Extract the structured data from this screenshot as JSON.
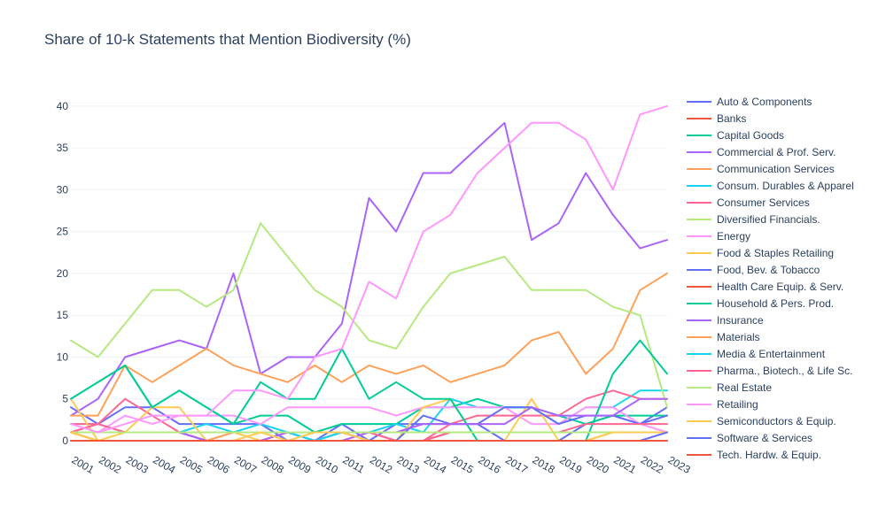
{
  "chart_data": {
    "type": "line",
    "title": "Share of 10-k Statements that Mention Biodiversity (%)",
    "xlabel": "",
    "ylabel": "",
    "x": [
      "2001",
      "2002",
      "2003",
      "2004",
      "2005",
      "2006",
      "2007",
      "2008",
      "2009",
      "2010",
      "2011",
      "2012",
      "2013",
      "2014",
      "2015",
      "2016",
      "2017",
      "2018",
      "2019",
      "2020",
      "2021",
      "2022",
      "2023"
    ],
    "ylim": [
      0,
      40
    ],
    "yticks": [
      0,
      5,
      10,
      15,
      20,
      25,
      30,
      35,
      40
    ],
    "grid": true,
    "legend_position": "right",
    "series": [
      {
        "name": "Auto & Components",
        "color": "#636efa",
        "values": [
          4,
          2,
          4,
          4,
          2,
          2,
          2,
          2,
          0,
          0,
          2,
          0,
          2,
          2,
          2,
          2,
          0,
          0,
          0,
          2,
          3,
          2,
          4
        ]
      },
      {
        "name": "Banks",
        "color": "#ef553b",
        "values": [
          1,
          0,
          0,
          0,
          0,
          0,
          0,
          0,
          0,
          0,
          0,
          0,
          0,
          0,
          0,
          0,
          0,
          0,
          0,
          0,
          0,
          0,
          0
        ]
      },
      {
        "name": "Capital Goods",
        "color": "#00cc96",
        "values": [
          5,
          7,
          9,
          4,
          6,
          4,
          2,
          3,
          3,
          1,
          2,
          2,
          2,
          4,
          4,
          5,
          4,
          4,
          3,
          2,
          3,
          3,
          3
        ]
      },
      {
        "name": "Commercial & Prof. Serv.",
        "color": "#ab63fa",
        "values": [
          3,
          5,
          10,
          11,
          12,
          11,
          20,
          8,
          10,
          10,
          14,
          29,
          25,
          32,
          32,
          35,
          38,
          24,
          26,
          32,
          27,
          23,
          24
        ]
      },
      {
        "name": "Communication Services",
        "color": "#ffa15a",
        "values": [
          3,
          3,
          9,
          7,
          9,
          11,
          9,
          8,
          7,
          9,
          7,
          9,
          8,
          9,
          7,
          8,
          9,
          12,
          13,
          8,
          11,
          18,
          20
        ]
      },
      {
        "name": "Consum. Durables & Apparel",
        "color": "#19d3f3",
        "values": [
          2,
          2,
          1,
          1,
          1,
          2,
          1,
          2,
          1,
          0,
          1,
          1,
          2,
          1,
          5,
          4,
          4,
          4,
          2,
          4,
          4,
          6,
          6
        ]
      },
      {
        "name": "Consumer Services",
        "color": "#ff6692",
        "values": [
          2,
          2,
          5,
          3,
          1,
          0,
          0,
          0,
          1,
          1,
          1,
          1,
          0,
          0,
          2,
          3,
          3,
          3,
          3,
          5,
          6,
          5,
          5
        ]
      },
      {
        "name": "Diversified Financials.",
        "color": "#b6e880",
        "values": [
          12,
          10,
          14,
          18,
          18,
          16,
          18,
          26,
          22,
          18,
          16,
          12,
          11,
          16,
          20,
          21,
          22,
          18,
          18,
          18,
          16,
          15,
          4
        ]
      },
      {
        "name": "Energy",
        "color": "#ff97ff",
        "values": [
          1,
          1,
          3,
          2,
          3,
          3,
          3,
          2,
          4,
          4,
          4,
          4,
          3,
          4,
          4,
          4,
          4,
          2,
          2,
          4,
          4,
          2,
          1
        ]
      },
      {
        "name": "Food & Staples Retailing",
        "color": "#fecb52",
        "values": [
          5,
          0,
          1,
          4,
          4,
          0,
          1,
          0,
          0,
          0,
          1,
          0,
          0,
          4,
          5,
          0,
          0,
          5,
          0,
          0,
          1,
          1,
          1
        ]
      },
      {
        "name": "Food, Bev. & Tobacco",
        "color": "#636efa",
        "values": [
          1,
          1,
          1,
          1,
          1,
          0,
          0,
          0,
          0,
          0,
          1,
          0,
          0,
          3,
          2,
          2,
          4,
          4,
          2,
          3,
          3,
          2,
          3
        ]
      },
      {
        "name": "Health Care Equip. & Serv.",
        "color": "#ef553b",
        "values": [
          1,
          0,
          0,
          0,
          0,
          0,
          0,
          0,
          0,
          0,
          0,
          0,
          0,
          0,
          1,
          1,
          1,
          1,
          1,
          1,
          1,
          1,
          1
        ]
      },
      {
        "name": "Household & Pers. Prod.",
        "color": "#00cc96",
        "values": [
          5,
          7,
          9,
          4,
          6,
          4,
          2,
          7,
          5,
          5,
          11,
          5,
          7,
          5,
          5,
          0,
          0,
          0,
          0,
          0,
          8,
          12,
          8
        ]
      },
      {
        "name": "Insurance",
        "color": "#ab63fa",
        "values": [
          1,
          2,
          1,
          1,
          1,
          0,
          0,
          0,
          1,
          0,
          0,
          1,
          1,
          2,
          2,
          2,
          2,
          4,
          3,
          3,
          3,
          5,
          5
        ]
      },
      {
        "name": "Materials",
        "color": "#ffa15a",
        "values": [
          1,
          0,
          0,
          0,
          0,
          0,
          1,
          1,
          1,
          1,
          1,
          1,
          1,
          1,
          1,
          1,
          1,
          1,
          1,
          1,
          1,
          1,
          1
        ]
      },
      {
        "name": "Media & Entertainment",
        "color": "#19d3f3",
        "values": [
          1,
          1,
          1,
          1,
          1,
          1,
          1,
          1,
          1,
          0,
          1,
          1,
          1,
          1,
          1,
          1,
          1,
          1,
          1,
          1,
          1,
          1,
          1
        ]
      },
      {
        "name": "Pharma., Biotech., & Life Sc.",
        "color": "#ff6692",
        "values": [
          1,
          2,
          1,
          1,
          1,
          1,
          1,
          1,
          1,
          1,
          1,
          1,
          0,
          0,
          1,
          1,
          1,
          1,
          1,
          2,
          2,
          2,
          2
        ]
      },
      {
        "name": "Real Estate",
        "color": "#b6e880",
        "values": [
          1,
          1,
          1,
          1,
          1,
          1,
          1,
          1,
          1,
          1,
          1,
          1,
          1,
          1,
          1,
          1,
          1,
          1,
          1,
          1,
          1,
          1,
          1
        ]
      },
      {
        "name": "Retailing",
        "color": "#ff97ff",
        "values": [
          2,
          1,
          2,
          3,
          3,
          3,
          6,
          6,
          5,
          10,
          11,
          19,
          17,
          25,
          27,
          32,
          35,
          38,
          38,
          36,
          30,
          39,
          40
        ]
      },
      {
        "name": "Semiconductors & Equip.",
        "color": "#fecb52",
        "values": [
          1,
          0,
          0,
          0,
          0,
          0,
          0,
          1,
          0,
          1,
          1,
          0,
          0,
          0,
          0,
          0,
          0,
          0,
          0,
          0,
          1,
          1,
          1
        ]
      },
      {
        "name": "Software & Services",
        "color": "#636efa",
        "values": [
          0,
          0,
          0,
          0,
          0,
          0,
          0,
          0,
          0,
          0,
          0,
          0,
          0,
          0,
          0,
          0,
          0,
          0,
          0,
          0,
          0,
          0,
          1
        ]
      },
      {
        "name": "Tech. Hardw. & Equip.",
        "color": "#ef553b",
        "values": [
          0,
          0,
          0,
          0,
          0,
          0,
          0,
          0,
          0,
          0,
          0,
          0,
          0,
          0,
          0,
          0,
          0,
          0,
          0,
          0,
          0,
          0,
          0
        ]
      }
    ]
  }
}
